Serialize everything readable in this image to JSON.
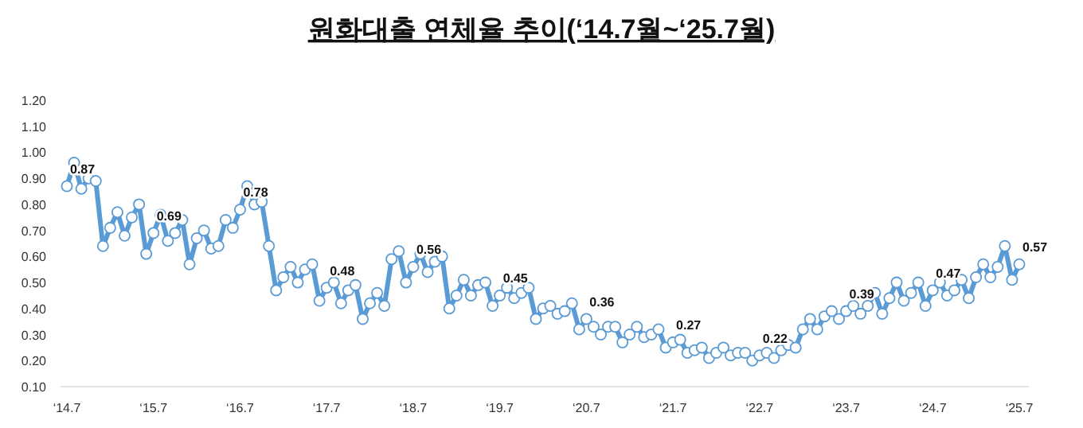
{
  "chart_data": {
    "type": "line",
    "title": "원화대출 연체율 추이(‘14.7월~‘25.7월)",
    "categories": [
      "‘14.7",
      null,
      null,
      null,
      null,
      null,
      null,
      null,
      null,
      null,
      null,
      null,
      "‘15.7",
      null,
      null,
      null,
      null,
      null,
      null,
      null,
      null,
      null,
      null,
      null,
      "‘16.7",
      null,
      null,
      null,
      null,
      null,
      null,
      null,
      null,
      null,
      null,
      null,
      "‘17.7",
      null,
      null,
      null,
      null,
      null,
      null,
      null,
      null,
      null,
      null,
      null,
      "‘18.7",
      null,
      null,
      null,
      null,
      null,
      null,
      null,
      null,
      null,
      null,
      null,
      "‘19.7",
      null,
      null,
      null,
      null,
      null,
      null,
      null,
      null,
      null,
      null,
      null,
      "‘20.7",
      null,
      null,
      null,
      null,
      null,
      null,
      null,
      null,
      null,
      null,
      null,
      "‘21.7",
      null,
      null,
      null,
      null,
      null,
      null,
      null,
      null,
      null,
      null,
      null,
      "‘22.7",
      null,
      null,
      null,
      null,
      null,
      null,
      null,
      null,
      null,
      null,
      null,
      "‘23.7",
      null,
      null,
      null,
      null,
      null,
      null,
      null,
      null,
      null,
      null,
      null,
      "‘24.7",
      null,
      null,
      null,
      null,
      null,
      null,
      null,
      null,
      null,
      null,
      null,
      "‘25.7"
    ],
    "series": [
      {
        "color": "#5b9bd5",
        "values": [
          0.87,
          0.96,
          0.86,
          0.9,
          0.89,
          0.64,
          0.71,
          0.77,
          0.68,
          0.75,
          0.8,
          0.61,
          0.69,
          0.76,
          0.66,
          0.69,
          0.74,
          0.57,
          0.67,
          0.7,
          0.63,
          0.64,
          0.74,
          0.71,
          0.78,
          0.87,
          0.8,
          0.81,
          0.64,
          0.47,
          0.52,
          0.56,
          0.5,
          0.55,
          0.57,
          0.43,
          0.48,
          0.5,
          0.42,
          0.47,
          0.49,
          0.36,
          0.42,
          0.46,
          0.41,
          0.59,
          0.62,
          0.5,
          0.56,
          0.61,
          0.54,
          0.58,
          0.6,
          0.4,
          0.45,
          0.51,
          0.45,
          0.49,
          0.5,
          0.41,
          0.45,
          0.48,
          0.44,
          0.46,
          0.48,
          0.36,
          0.4,
          0.41,
          0.38,
          0.39,
          0.42,
          0.32,
          0.36,
          0.33,
          0.3,
          0.33,
          0.33,
          0.27,
          0.3,
          0.33,
          0.29,
          0.3,
          0.32,
          0.25,
          0.27,
          0.28,
          0.23,
          0.24,
          0.25,
          0.21,
          0.23,
          0.25,
          0.22,
          0.23,
          0.23,
          0.2,
          0.22,
          0.23,
          0.21,
          0.24,
          0.26,
          0.25,
          0.32,
          0.36,
          0.32,
          0.37,
          0.39,
          0.36,
          0.39,
          0.41,
          0.38,
          0.41,
          0.46,
          0.38,
          0.44,
          0.5,
          0.43,
          0.46,
          0.5,
          0.41,
          0.47,
          0.5,
          0.45,
          0.47,
          0.51,
          0.44,
          0.52,
          0.57,
          0.52,
          0.56,
          0.64,
          0.51,
          0.57
        ],
        "value_labels": [
          "0.87",
          null,
          null,
          null,
          null,
          null,
          null,
          null,
          null,
          null,
          null,
          null,
          "0.69",
          null,
          null,
          null,
          null,
          null,
          null,
          null,
          null,
          null,
          null,
          null,
          "0.78",
          null,
          null,
          null,
          null,
          null,
          null,
          null,
          null,
          null,
          null,
          null,
          "0.48",
          null,
          null,
          null,
          null,
          null,
          null,
          null,
          null,
          null,
          null,
          null,
          "0.56",
          null,
          null,
          null,
          null,
          null,
          null,
          null,
          null,
          null,
          null,
          null,
          "0.45",
          null,
          null,
          null,
          null,
          null,
          null,
          null,
          null,
          null,
          null,
          null,
          "0.36",
          null,
          null,
          null,
          null,
          null,
          null,
          null,
          null,
          null,
          null,
          null,
          "0.27",
          null,
          null,
          null,
          null,
          null,
          null,
          null,
          null,
          null,
          null,
          null,
          "0.22",
          null,
          null,
          null,
          null,
          null,
          null,
          null,
          null,
          null,
          null,
          null,
          "0.39",
          null,
          null,
          null,
          null,
          null,
          null,
          null,
          null,
          null,
          null,
          null,
          "0.47",
          null,
          null,
          null,
          null,
          null,
          null,
          null,
          null,
          null,
          null,
          null,
          "0.57"
        ]
      }
    ],
    "ylim": [
      0.1,
      1.2
    ],
    "yticks": [
      {
        "value": 0.1,
        "label": "0.10"
      },
      {
        "value": 0.2,
        "label": "0.20"
      },
      {
        "value": 0.3,
        "label": "0.30"
      },
      {
        "value": 0.4,
        "label": "0.40"
      },
      {
        "value": 0.5,
        "label": "0.50"
      },
      {
        "value": 0.6,
        "label": "0.60"
      },
      {
        "value": 0.7,
        "label": "0.70"
      },
      {
        "value": 0.8,
        "label": "0.80"
      },
      {
        "value": 0.9,
        "label": "0.90"
      },
      {
        "value": 1.0,
        "label": "1.00"
      },
      {
        "value": 1.1,
        "label": "1.10"
      },
      {
        "value": 1.2,
        "label": "1.20"
      }
    ],
    "marker": "circle",
    "line_style": "solid"
  }
}
